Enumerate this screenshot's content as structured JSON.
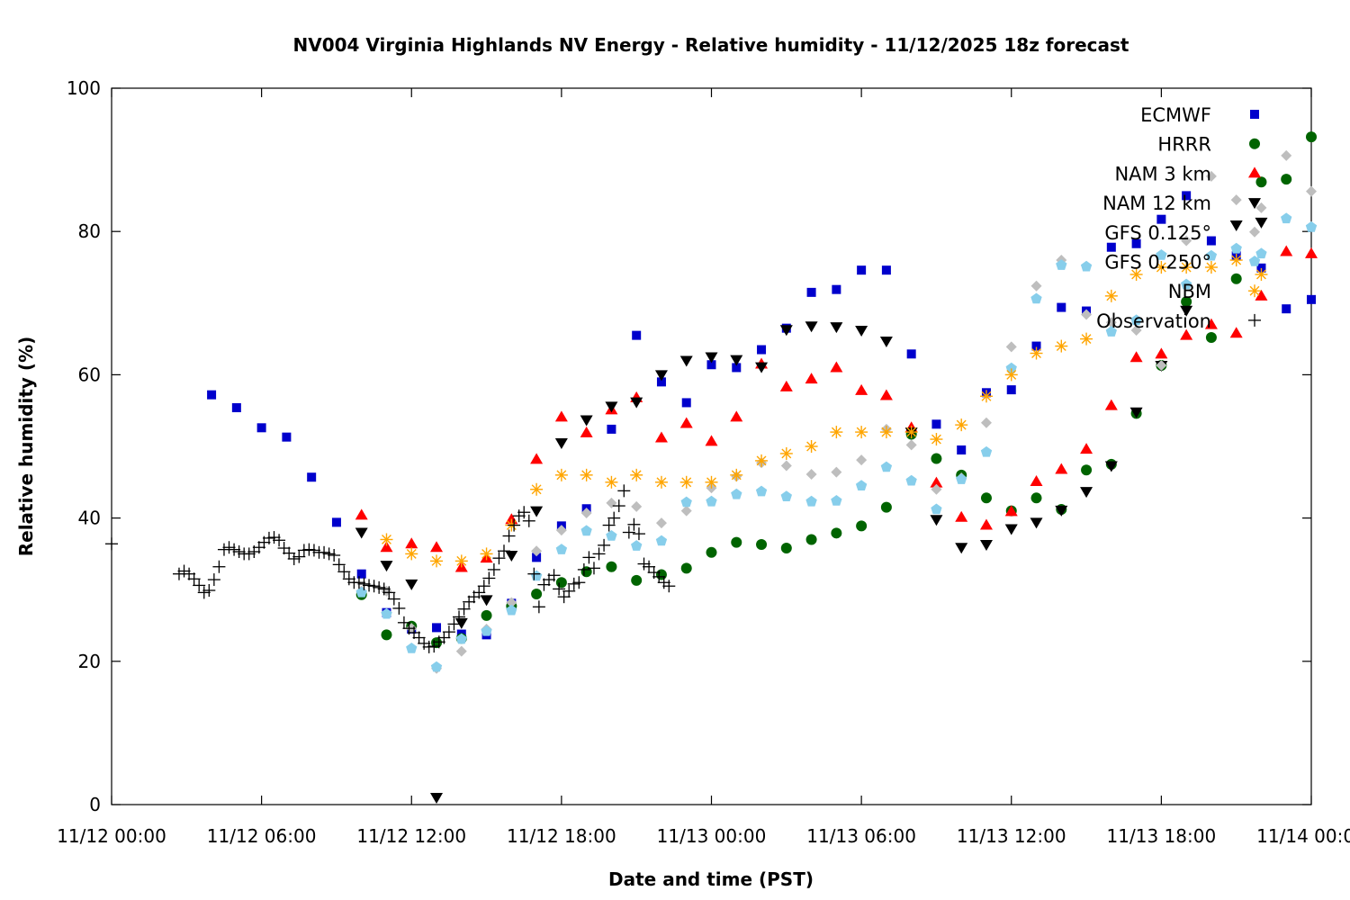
{
  "chart_data": {
    "type": "scatter",
    "title": "NV004 Virginia Highlands NV Energy - Relative humidity - 11/12/2025 18z forecast",
    "xlabel": "Date and time (PST)",
    "ylabel": "Relative humidity (%)",
    "x_units": "hours since 11/12 00:00",
    "xlim": [
      0,
      48
    ],
    "ylim": [
      0,
      100
    ],
    "x_ticks": [
      {
        "value": 0,
        "label": "11/12 00:00"
      },
      {
        "value": 6,
        "label": "11/12 06:00"
      },
      {
        "value": 12,
        "label": "11/12 12:00"
      },
      {
        "value": 18,
        "label": "11/12 18:00"
      },
      {
        "value": 24,
        "label": "11/13 00:00"
      },
      {
        "value": 30,
        "label": "11/13 06:00"
      },
      {
        "value": 36,
        "label": "11/13 12:00"
      },
      {
        "value": 42,
        "label": "11/13 18:00"
      },
      {
        "value": 48,
        "label": "11/14 00:00"
      }
    ],
    "y_ticks": [
      {
        "value": 0,
        "label": "0"
      },
      {
        "value": 20,
        "label": "20"
      },
      {
        "value": 40,
        "label": "40"
      },
      {
        "value": 60,
        "label": "60"
      },
      {
        "value": 80,
        "label": "80"
      },
      {
        "value": 100,
        "label": "100"
      }
    ],
    "grid": false,
    "legend_position": "top-right",
    "series": [
      {
        "name": "ECMWF",
        "marker": "square",
        "color": "#0000cc",
        "x": [
          4,
          5,
          6,
          7,
          8,
          9,
          10,
          11,
          12,
          13,
          14,
          15,
          16,
          17,
          18,
          19,
          20,
          21,
          22,
          23,
          24,
          25,
          26,
          27,
          28,
          29,
          30,
          31,
          32,
          33,
          34,
          35,
          36,
          37,
          38,
          39,
          40,
          41,
          42,
          43,
          44,
          45,
          46,
          47,
          48
        ],
        "y": [
          57.2,
          55.4,
          52.6,
          51.3,
          45.7,
          39.4,
          32.2,
          26.8,
          24.5,
          24.7,
          23.8,
          23.7,
          28.1,
          34.5,
          38.9,
          41.3,
          52.4,
          65.5,
          59.0,
          56.1,
          61.4,
          61.0,
          63.5,
          66.5,
          71.5,
          71.9,
          74.6,
          74.6,
          62.9,
          53.1,
          49.5,
          57.5,
          57.9,
          64.0,
          69.4,
          68.9,
          77.8,
          78.3,
          81.7,
          85.0,
          78.7,
          76.6,
          74.9,
          69.2,
          70.5
        ]
      },
      {
        "name": "HRRR",
        "marker": "circle",
        "color": "#006400",
        "x": [
          10,
          11,
          12,
          13,
          14,
          15,
          16,
          17,
          18,
          19,
          20,
          21,
          22,
          23,
          24,
          25,
          26,
          27,
          28,
          29,
          30,
          31,
          32,
          33,
          34,
          35,
          36,
          37,
          38,
          39,
          40,
          41,
          42,
          43,
          44,
          45,
          46,
          47,
          48
        ],
        "y": [
          29.3,
          23.7,
          24.9,
          22.6,
          23.2,
          26.4,
          27.7,
          29.4,
          31.0,
          32.5,
          33.2,
          31.3,
          32.1,
          33.0,
          35.2,
          36.6,
          36.3,
          35.8,
          37.0,
          37.9,
          38.9,
          41.5,
          51.7,
          48.3,
          46.0,
          42.8,
          41.0,
          42.8,
          41.2,
          46.7,
          47.5,
          54.6,
          61.3,
          70.2,
          65.2,
          73.4,
          86.9,
          87.3,
          93.2
        ]
      },
      {
        "name": "NAM 3 km",
        "marker": "triangle-up",
        "color": "#ff0000",
        "x": [
          10,
          11,
          12,
          13,
          14,
          15,
          16,
          17,
          18,
          19,
          20,
          21,
          22,
          23,
          24,
          25,
          26,
          27,
          28,
          29,
          30,
          31,
          32,
          33,
          34,
          35,
          36,
          37,
          38,
          39,
          40,
          41,
          42,
          43,
          44,
          45,
          46,
          47,
          48
        ],
        "y": [
          40.4,
          35.9,
          36.4,
          35.9,
          33.1,
          34.4,
          39.8,
          48.2,
          54.1,
          51.9,
          55.1,
          56.8,
          51.2,
          53.2,
          50.7,
          54.1,
          61.5,
          58.3,
          59.4,
          61.0,
          57.8,
          57.1,
          52.6,
          44.9,
          40.1,
          39.0,
          40.9,
          45.1,
          46.8,
          49.6,
          55.7,
          62.4,
          62.9,
          65.5,
          67.0,
          65.8,
          71.0,
          77.2,
          76.9
        ]
      },
      {
        "name": "NAM 12 km",
        "marker": "triangle-down",
        "color": "#000000",
        "x": [
          10,
          11,
          12,
          13,
          14,
          15,
          16,
          17,
          18,
          19,
          20,
          21,
          22,
          23,
          24,
          25,
          26,
          27,
          28,
          29,
          30,
          31,
          32,
          33,
          34,
          35,
          36,
          37,
          38,
          39,
          40,
          41,
          42,
          43,
          45,
          46
        ],
        "y": [
          38.0,
          33.4,
          30.8,
          1.0,
          25.4,
          28.6,
          34.8,
          41.0,
          50.5,
          53.7,
          55.6,
          56.2,
          60.0,
          62.0,
          62.5,
          62.1,
          61.1,
          66.3,
          66.8,
          66.7,
          66.2,
          64.7,
          52.0,
          39.8,
          35.9,
          36.3,
          38.5,
          39.4,
          41.1,
          43.7,
          47.3,
          54.8,
          61.3,
          69.0,
          80.9,
          81.3
        ]
      },
      {
        "name": "GFS 0.125°",
        "marker": "diamond",
        "color": "#bebebe",
        "x": [
          10,
          11,
          12,
          13,
          14,
          15,
          16,
          17,
          18,
          19,
          20,
          21,
          22,
          23,
          24,
          25,
          26,
          27,
          28,
          29,
          30,
          31,
          32,
          33,
          34,
          35,
          36,
          37,
          38,
          39,
          40,
          41,
          42,
          43,
          44,
          45,
          46,
          47,
          48
        ],
        "y": [
          29.8,
          29.8,
          24.6,
          19.0,
          21.4,
          24.5,
          28.2,
          35.4,
          38.3,
          40.7,
          42.1,
          41.6,
          39.3,
          41.0,
          44.2,
          45.8,
          47.7,
          47.3,
          46.1,
          46.4,
          48.1,
          52.4,
          50.2,
          44.0,
          45.6,
          53.3,
          63.9,
          72.4,
          76.0,
          68.4,
          67.3,
          66.2,
          61.3,
          78.7,
          87.7,
          84.4,
          83.3,
          90.6,
          85.6
        ]
      },
      {
        "name": "GFS 0.250°",
        "marker": "pentagon",
        "color": "#87ceeb",
        "x": [
          10,
          11,
          12,
          13,
          14,
          15,
          16,
          17,
          18,
          19,
          20,
          21,
          22,
          23,
          24,
          25,
          26,
          27,
          28,
          29,
          30,
          31,
          32,
          33,
          34,
          35,
          36,
          37,
          38,
          39,
          40,
          41,
          42,
          43,
          44,
          45,
          46,
          47,
          48
        ],
        "y": [
          29.6,
          26.6,
          21.8,
          19.2,
          23.1,
          24.2,
          27.1,
          31.9,
          35.6,
          38.2,
          37.5,
          36.1,
          36.8,
          42.2,
          42.3,
          43.3,
          43.7,
          43.0,
          42.3,
          42.4,
          44.5,
          47.1,
          45.2,
          41.2,
          45.4,
          49.2,
          60.9,
          70.6,
          75.3,
          75.1,
          66.0,
          67.6,
          76.7,
          72.6,
          76.6,
          77.6,
          76.9,
          81.8,
          80.6
        ]
      },
      {
        "name": "NBM",
        "marker": "asterisk",
        "color": "#ffa500",
        "x": [
          11,
          12,
          13,
          14,
          15,
          16,
          17,
          18,
          19,
          20,
          21,
          22,
          23,
          24,
          25,
          26,
          27,
          28,
          29,
          30,
          31,
          32,
          33,
          34,
          35,
          36,
          37,
          38,
          39,
          40,
          41,
          42,
          43,
          44,
          45,
          46
        ],
        "y": [
          37,
          35,
          34,
          34,
          35,
          39,
          44,
          46,
          46,
          45,
          46,
          45,
          45,
          45,
          46,
          48,
          49,
          50,
          52,
          52,
          52,
          52,
          51,
          53,
          57,
          60,
          63,
          64,
          65,
          71,
          74,
          75,
          75,
          75,
          76,
          74
        ]
      },
      {
        "name": "Observation",
        "marker": "plus",
        "color": "#000000",
        "x": [
          0,
          2.7,
          2.9,
          3.1,
          3.3,
          3.5,
          3.7,
          3.9,
          4.1,
          4.3,
          4.5,
          4.7,
          4.9,
          5.1,
          5.3,
          5.5,
          5.7,
          5.9,
          6.1,
          6.3,
          6.5,
          6.7,
          6.9,
          7.1,
          7.3,
          7.5,
          7.7,
          7.9,
          8.1,
          8.3,
          8.5,
          8.7,
          8.9,
          9.1,
          9.3,
          9.5,
          9.7,
          9.9,
          10.1,
          10.3,
          10.5,
          10.7,
          10.9,
          11.1,
          11.3,
          11.5,
          11.7,
          11.9,
          12.1,
          12.3,
          12.5,
          12.7,
          12.9,
          13.1,
          13.3,
          13.5,
          13.7,
          13.9,
          14.1,
          14.3,
          14.5,
          14.7,
          14.9,
          15.1,
          15.3,
          15.5,
          15.7,
          15.9,
          16.1,
          16.3,
          16.5,
          16.7,
          16.9,
          17.1,
          17.3,
          17.5,
          17.7,
          17.9,
          18.1,
          18.3,
          18.5,
          18.7,
          18.9,
          19.1,
          19.3,
          19.5,
          19.7,
          19.9,
          20.1,
          20.3,
          20.5,
          20.7,
          20.9,
          21.1,
          21.3,
          21.5,
          21.7,
          21.9,
          22.1,
          22.3
        ],
        "y": [
          36.4,
          32.2,
          32.6,
          32.2,
          31.5,
          30.6,
          29.6,
          29.9,
          31.4,
          33.2,
          35.6,
          35.9,
          35.6,
          35.3,
          35.0,
          35.0,
          35.3,
          35.9,
          36.6,
          37.2,
          37.3,
          36.9,
          35.8,
          35.1,
          34.3,
          34.6,
          35.5,
          35.6,
          35.5,
          35.2,
          35.2,
          35.0,
          34.8,
          33.5,
          32.5,
          31.5,
          31.0,
          31.0,
          30.8,
          30.6,
          30.5,
          30.3,
          30.1,
          29.6,
          28.7,
          27.4,
          25.4,
          24.6,
          24.0,
          23.3,
          22.5,
          22.0,
          22.1,
          22.7,
          23.3,
          24.1,
          25.2,
          26.2,
          27.3,
          28.3,
          29.0,
          29.6,
          30.5,
          31.6,
          32.8,
          34.4,
          35.4,
          37.5,
          39.0,
          40.3,
          40.8,
          39.6,
          32.2,
          27.6,
          30.7,
          31.4,
          32.0,
          30.1,
          29.0,
          29.8,
          30.8,
          31.0,
          32.8,
          34.5,
          33.0,
          35.0,
          36.2,
          39.0,
          40.0,
          41.7,
          43.8,
          38.0,
          39.1,
          37.8,
          33.6,
          33.2,
          32.4,
          31.8,
          31.0,
          30.5
        ]
      }
    ]
  }
}
